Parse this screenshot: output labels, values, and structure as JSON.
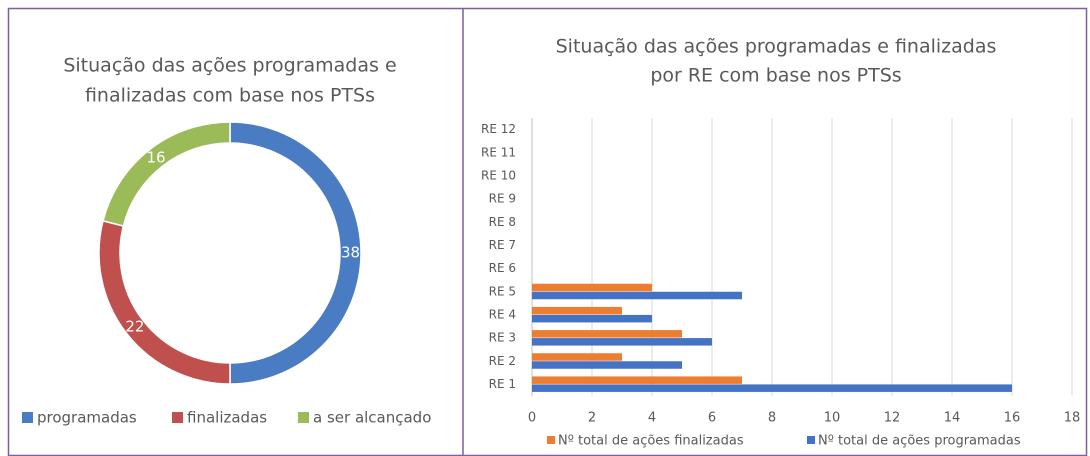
{
  "chart_data": [
    {
      "type": "donut",
      "title": [
        "Situação das ações programadas e",
        "finalizadas com base nos PTSs"
      ],
      "categories": [
        "programadas",
        "finalizadas",
        "a ser alcançado"
      ],
      "values": [
        38,
        22,
        16
      ],
      "colors": [
        "#4a7cc3",
        "#c0504d",
        "#9bbb59"
      ]
    },
    {
      "type": "hbar",
      "title": [
        "Situação das ações programadas e finalizadas",
        "por RE com base nos PTSs"
      ],
      "categories": [
        "RE 1",
        "RE 2",
        "RE 3",
        "RE 4",
        "RE 5",
        "RE 6",
        "RE 7",
        "RE 8",
        "RE 9",
        "RE 10",
        "RE 11",
        "RE 12"
      ],
      "series": [
        {
          "name": "Nº total de ações finalizadas",
          "color": "#ed7d31",
          "values": [
            7,
            3,
            5,
            3,
            4,
            null,
            null,
            null,
            null,
            null,
            null,
            null
          ]
        },
        {
          "name": "Nº total de ações programadas",
          "color": "#4472c4",
          "values": [
            16,
            5,
            6,
            4,
            7,
            null,
            null,
            null,
            null,
            null,
            null,
            null
          ]
        }
      ],
      "xlim": [
        0,
        18
      ],
      "xticks": [
        0,
        2,
        4,
        6,
        8,
        10,
        12,
        14,
        16,
        18
      ],
      "grid": true
    }
  ]
}
